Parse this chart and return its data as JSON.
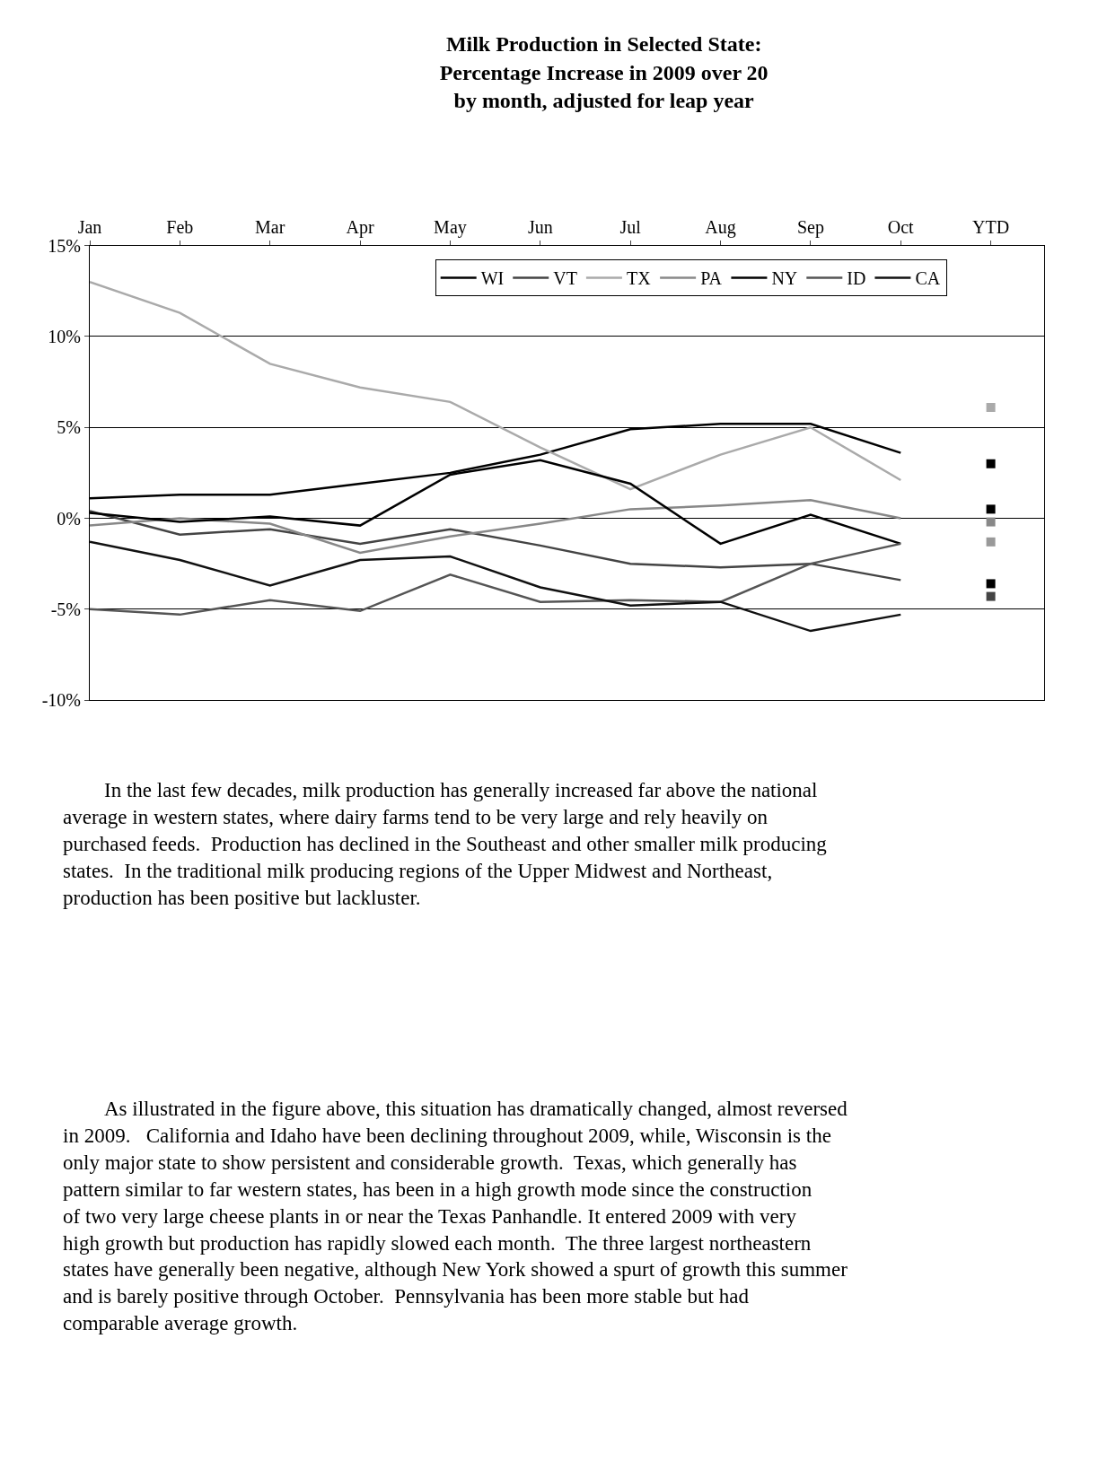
{
  "chart_data": {
    "type": "line",
    "title": "Milk Production in Selected State:\nPercentage Increase in 2009 over 20\nby month, adjusted for leap year",
    "categories": [
      "Jan",
      "Feb",
      "Mar",
      "Apr",
      "May",
      "Jun",
      "Jul",
      "Aug",
      "Sep",
      "Oct",
      "YTD"
    ],
    "series": [
      {
        "name": "WI",
        "color": "#000000",
        "values": [
          1.1,
          1.3,
          1.3,
          1.9,
          2.5,
          3.5,
          4.9,
          5.2,
          5.2,
          3.6,
          null
        ]
      },
      {
        "name": "VT",
        "color": "#444444",
        "values": [
          0.4,
          -0.9,
          -0.6,
          -1.4,
          -0.6,
          -1.5,
          -2.5,
          -2.7,
          -2.5,
          -3.4,
          null
        ]
      },
      {
        "name": "TX",
        "color": "#aaaaaa",
        "values": [
          13.0,
          11.3,
          8.5,
          7.2,
          6.4,
          3.9,
          1.6,
          3.5,
          5.0,
          2.1,
          null
        ]
      },
      {
        "name": "PA",
        "color": "#888888",
        "values": [
          -0.4,
          0.0,
          -0.3,
          -1.9,
          -1.0,
          -0.3,
          0.5,
          0.7,
          1.0,
          0.0,
          null
        ]
      },
      {
        "name": "NY",
        "color": "#000000",
        "values": [
          0.3,
          -0.2,
          0.1,
          -0.4,
          2.4,
          3.2,
          1.9,
          -1.4,
          0.2,
          -1.4,
          null
        ]
      },
      {
        "name": "ID",
        "color": "#555555",
        "values": [
          -5.0,
          -5.3,
          -4.5,
          -5.1,
          -3.1,
          -4.6,
          -4.5,
          -4.6,
          -2.5,
          -1.4,
          null
        ]
      },
      {
        "name": "CA",
        "color": "#111111",
        "values": [
          -1.3,
          -2.3,
          -3.7,
          -2.3,
          -2.1,
          -3.8,
          -4.8,
          -4.6,
          -6.2,
          -5.3,
          null
        ]
      },
      {
        "type": "scatter",
        "marker": "square",
        "color": "#aaaaaa",
        "x": [
          "YTD"
        ],
        "values": [
          6.1
        ]
      },
      {
        "type": "scatter",
        "marker": "square",
        "color": "#000000",
        "x": [
          "YTD"
        ],
        "values": [
          3.0
        ]
      },
      {
        "type": "scatter",
        "marker": "square",
        "color": "#000000",
        "x": [
          "YTD"
        ],
        "values": [
          0.5
        ]
      },
      {
        "type": "scatter",
        "marker": "square",
        "color": "#888888",
        "x": [
          "YTD"
        ],
        "values": [
          -0.2
        ]
      },
      {
        "type": "scatter",
        "marker": "square",
        "color": "#999999",
        "x": [
          "YTD"
        ],
        "values": [
          -1.3
        ]
      },
      {
        "type": "scatter",
        "marker": "square",
        "color": "#000000",
        "x": [
          "YTD"
        ],
        "values": [
          -3.6
        ]
      },
      {
        "type": "scatter",
        "marker": "square",
        "color": "#444444",
        "x": [
          "YTD"
        ],
        "values": [
          -4.3
        ]
      }
    ],
    "ylim": [
      -10,
      15
    ],
    "yticks": [
      {
        "value": 15,
        "label": "15%"
      },
      {
        "value": 10,
        "label": "10%"
      },
      {
        "value": 5,
        "label": "5%"
      },
      {
        "value": 0,
        "label": "0%"
      },
      {
        "value": -5,
        "label": "-5%"
      },
      {
        "value": -10,
        "label": "-10%"
      }
    ],
    "grid": "y",
    "legend": "top",
    "annotations": [
      "In the last few decades, milk production has generally increased far above the national average in western states, where dairy farms tend to be very large and rely heavily on purchased feeds.  Production has declined in the Southeast and other smaller milk producing states.  In the traditional milk producing regions of the Upper Midwest and Northeast, production has been positive but lackluster.",
      "As illustrated in the figure above, this situation has dramatically changed, almost reversed in 2009.   California and Idaho have been declining throughout 2009, while, Wisconsin is the only major state to show persistent and considerable growth.  Texas, which generally has pattern similar to far western states, has been in a high growth mode since the construction of two very large cheese plants in or near the Texas Panhandle. It entered 2009 with very high growth but production has rapidly slowed each month.  The three largest northeastern states have generally been negative, although New York showed a spurt of growth this summer and is barely positive through October.  Pennsylvania has been more stable but had comparable average growth."
    ]
  }
}
